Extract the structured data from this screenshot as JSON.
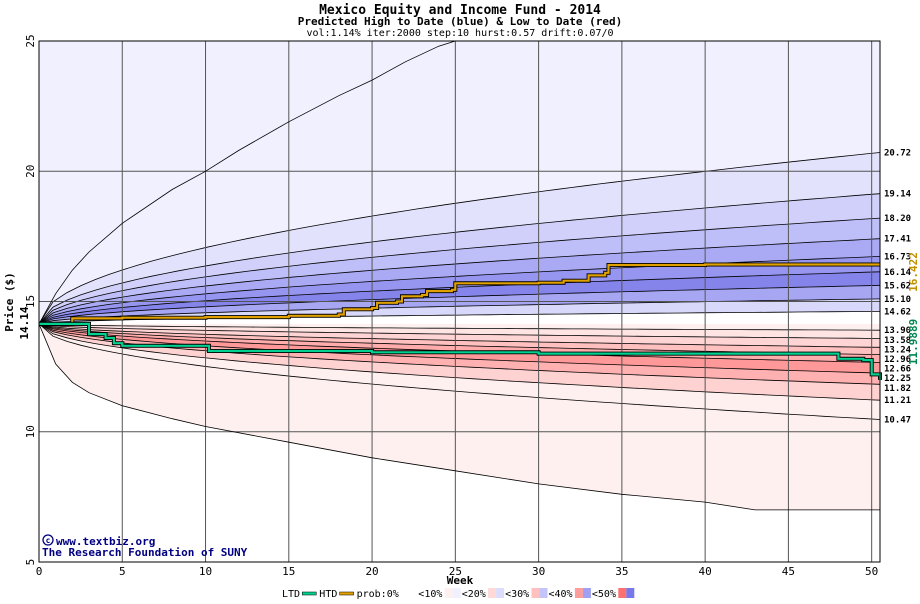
{
  "chart_data": {
    "type": "area",
    "title": "Mexico Equity and Income Fund - 2014",
    "subtitle": "Predicted High to Date (blue) &  Low to Date (red)",
    "params": "vol:1.14% iter:2000 step:10 hurst:0.57 drift:0.07/0",
    "xlabel": "Week",
    "ylabel": "Price ($)",
    "xlim": [
      0,
      50.5
    ],
    "ylim": [
      5,
      25
    ],
    "x_ticks": [
      0,
      5,
      10,
      15,
      20,
      25,
      30,
      35,
      40,
      45,
      50
    ],
    "y_ticks": [
      5,
      10,
      15,
      20,
      25
    ],
    "grid": true,
    "start_price": 14.14,
    "start_price_label": "14.14",
    "htd_final_label": "16.422",
    "ltd_final_label": "11.9889",
    "percentile_end_labels": [
      "20.72",
      "19.14",
      "18.20",
      "17.41",
      "16.73",
      "16.14",
      "15.62",
      "15.10",
      "14.62",
      "13.90",
      "13.58",
      "13.24",
      "12.96",
      "12.66",
      "12.25",
      "11.82",
      "11.21",
      "10.47"
    ],
    "high_bands": [
      {
        "end": 20.72,
        "upper": 25.6
      },
      {
        "end": 19.14,
        "upper": 20.72
      },
      {
        "end": 18.2,
        "upper": 19.14
      },
      {
        "end": 17.41,
        "upper": 18.2
      },
      {
        "end": 16.73,
        "upper": 17.41
      },
      {
        "end": 16.14,
        "upper": 16.73
      },
      {
        "end": 15.62,
        "upper": 16.14
      },
      {
        "end": 15.1,
        "upper": 15.62
      },
      {
        "end": 14.62,
        "upper": 15.1
      }
    ],
    "low_bands": [
      {
        "end": 13.9
      },
      {
        "end": 13.58
      },
      {
        "end": 13.24
      },
      {
        "end": 12.96
      },
      {
        "end": 12.66
      },
      {
        "end": 12.25
      },
      {
        "end": 11.82
      },
      {
        "end": 11.21
      },
      {
        "end": 10.47
      }
    ],
    "outer_upper_curve": [
      [
        0,
        14.14
      ],
      [
        1,
        15.3
      ],
      [
        2,
        16.2
      ],
      [
        3,
        16.9
      ],
      [
        5,
        18.0
      ],
      [
        8,
        19.3
      ],
      [
        10,
        20.0
      ],
      [
        12,
        20.8
      ],
      [
        15,
        21.9
      ],
      [
        18,
        22.9
      ],
      [
        20,
        23.5
      ],
      [
        22,
        24.2
      ],
      [
        24,
        24.8
      ],
      [
        25,
        25.0
      ]
    ],
    "outer_lower_curve": [
      [
        0,
        14.14
      ],
      [
        1,
        12.6
      ],
      [
        2,
        11.9
      ],
      [
        3,
        11.5
      ],
      [
        5,
        11.0
      ],
      [
        8,
        10.5
      ],
      [
        10,
        10.2
      ],
      [
        15,
        9.6
      ],
      [
        20,
        9.0
      ],
      [
        25,
        8.5
      ],
      [
        30,
        8.0
      ],
      [
        35,
        7.6
      ],
      [
        40,
        7.3
      ],
      [
        43,
        7.0
      ],
      [
        45,
        7.0
      ],
      [
        50.5,
        7.0
      ]
    ],
    "htd_path": [
      [
        0,
        14.14
      ],
      [
        1.5,
        14.14
      ],
      [
        2,
        14.35
      ],
      [
        5,
        14.38
      ],
      [
        10,
        14.4
      ],
      [
        15,
        14.45
      ],
      [
        18,
        14.5
      ],
      [
        18.3,
        14.7
      ],
      [
        20,
        14.75
      ],
      [
        20.3,
        14.95
      ],
      [
        21.5,
        15.0
      ],
      [
        21.8,
        15.2
      ],
      [
        23,
        15.25
      ],
      [
        23.3,
        15.4
      ],
      [
        24.8,
        15.45
      ],
      [
        25,
        15.7
      ],
      [
        30,
        15.72
      ],
      [
        31.5,
        15.8
      ],
      [
        33,
        16.0
      ],
      [
        34,
        16.1
      ],
      [
        34.2,
        16.4
      ],
      [
        40,
        16.42
      ],
      [
        50.5,
        16.42
      ]
    ],
    "ltd_path": [
      [
        0,
        14.14
      ],
      [
        2.8,
        14.14
      ],
      [
        3,
        13.75
      ],
      [
        4,
        13.6
      ],
      [
        4.5,
        13.4
      ],
      [
        5,
        13.3
      ],
      [
        10,
        13.3
      ],
      [
        10.2,
        13.1
      ],
      [
        20,
        13.05
      ],
      [
        30,
        13.0
      ],
      [
        47.5,
        13.0
      ],
      [
        48,
        12.8
      ],
      [
        49.5,
        12.75
      ],
      [
        50,
        12.2
      ],
      [
        50.5,
        11.99
      ]
    ],
    "legend": [
      "LTD",
      "HTD",
      "prob:0%",
      "<10%",
      "<20%",
      "<30%",
      "<40%",
      "<50%"
    ],
    "credit_line1": "www.textbiz.org",
    "credit_line2": "The Research Foundation of SUNY"
  },
  "colors": {
    "htd_line": "#e0a000",
    "ltd_line": "#00d090",
    "blue_bands": [
      "#f0f0ff",
      "#e2e2fc",
      "#d0d0fa",
      "#bebef8",
      "#aaaaf4",
      "#9696f0",
      "#8484ea",
      "#a6a6f2",
      "#d8d8fa"
    ],
    "red_bands": [
      "#fff0f0",
      "#ffe4e4",
      "#ffd4d4",
      "#ffc0c0",
      "#ffacac",
      "#ff9898",
      "#ffb0b0",
      "#ffd2d2",
      "#fff0f0"
    ],
    "htd_label": "#c09000",
    "ltd_label": "#008850"
  }
}
